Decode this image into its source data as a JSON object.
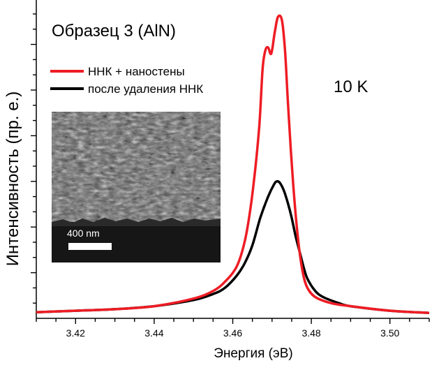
{
  "chart_data": {
    "type": "line",
    "title": "Образец 3 (AlN)",
    "annotation": "10 K",
    "xlabel": "Энергия (эВ)",
    "ylabel": "Интенсивность (пр. е.)",
    "xlim": [
      3.41,
      3.51
    ],
    "ylim": [
      0,
      1.0
    ],
    "x_ticks": [
      "3.42",
      "3.44",
      "3.46",
      "3.48",
      "3.50"
    ],
    "x_tick_values": [
      3.42,
      3.44,
      3.46,
      3.48,
      3.5
    ],
    "y_tick_labels_shown": false,
    "legend_position": "top-left",
    "series": [
      {
        "name": "ННК + наностены",
        "color": "#ee1c24",
        "points": [
          [
            3.41,
            0.02
          ],
          [
            3.42,
            0.025
          ],
          [
            3.43,
            0.03
          ],
          [
            3.44,
            0.04
          ],
          [
            3.45,
            0.065
          ],
          [
            3.455,
            0.09
          ],
          [
            3.458,
            0.12
          ],
          [
            3.461,
            0.17
          ],
          [
            3.463,
            0.25
          ],
          [
            3.4645,
            0.36
          ],
          [
            3.4658,
            0.5
          ],
          [
            3.4668,
            0.64
          ],
          [
            3.4676,
            0.82
          ],
          [
            3.4683,
            0.88
          ],
          [
            3.469,
            0.89
          ],
          [
            3.4698,
            0.87
          ],
          [
            3.4707,
            0.94
          ],
          [
            3.4715,
            0.99
          ],
          [
            3.4725,
            0.98
          ],
          [
            3.4733,
            0.88
          ],
          [
            3.474,
            0.72
          ],
          [
            3.4748,
            0.55
          ],
          [
            3.4755,
            0.42
          ],
          [
            3.4763,
            0.3
          ],
          [
            3.4772,
            0.2
          ],
          [
            3.478,
            0.14
          ],
          [
            3.479,
            0.1
          ],
          [
            3.481,
            0.07
          ],
          [
            3.485,
            0.05
          ],
          [
            3.49,
            0.04
          ],
          [
            3.5,
            0.025
          ],
          [
            3.51,
            0.018
          ]
        ]
      },
      {
        "name": "после удаления ННК",
        "color": "#000000",
        "points": [
          [
            3.41,
            0.02
          ],
          [
            3.42,
            0.025
          ],
          [
            3.43,
            0.03
          ],
          [
            3.44,
            0.04
          ],
          [
            3.45,
            0.06
          ],
          [
            3.455,
            0.08
          ],
          [
            3.458,
            0.1
          ],
          [
            3.461,
            0.14
          ],
          [
            3.463,
            0.18
          ],
          [
            3.465,
            0.24
          ],
          [
            3.467,
            0.33
          ],
          [
            3.469,
            0.4
          ],
          [
            3.4705,
            0.44
          ],
          [
            3.4712,
            0.45
          ],
          [
            3.472,
            0.445
          ],
          [
            3.473,
            0.42
          ],
          [
            3.474,
            0.38
          ],
          [
            3.475,
            0.33
          ],
          [
            3.476,
            0.27
          ],
          [
            3.477,
            0.22
          ],
          [
            3.478,
            0.17
          ],
          [
            3.479,
            0.13
          ],
          [
            3.481,
            0.09
          ],
          [
            3.483,
            0.07
          ],
          [
            3.487,
            0.05
          ],
          [
            3.49,
            0.04
          ],
          [
            3.5,
            0.025
          ],
          [
            3.51,
            0.018
          ]
        ]
      }
    ]
  },
  "inset": {
    "description_label": "SEM inset",
    "scale_bar_label": "400 nm"
  }
}
